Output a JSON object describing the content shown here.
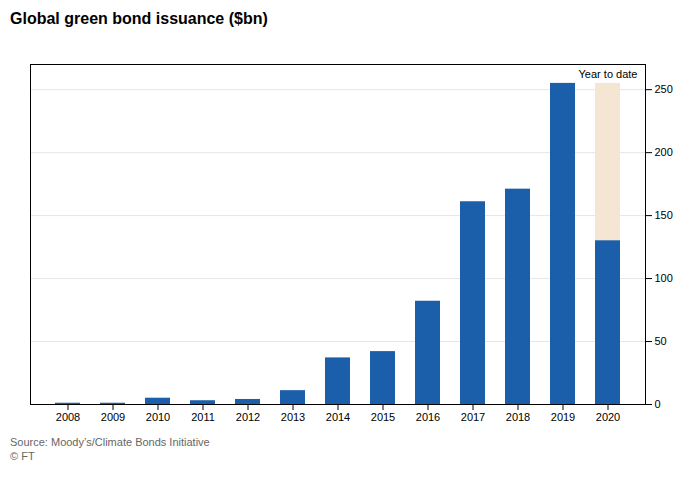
{
  "chart_data": {
    "type": "bar",
    "title": "Global green bond issuance ($bn)",
    "categories": [
      "2008",
      "2009",
      "2010",
      "2011",
      "2012",
      "2013",
      "2014",
      "2015",
      "2016",
      "2017",
      "2018",
      "2019",
      "2020"
    ],
    "values": [
      1,
      1,
      5,
      3,
      4,
      11,
      37,
      42,
      82,
      161,
      171,
      255,
      130
    ],
    "color": "#1b5faa",
    "ylim": [
      0,
      270
    ],
    "yticks": [
      0,
      50,
      100,
      150,
      200,
      250
    ],
    "grid": true,
    "highlight": {
      "category": "2020",
      "value": 255,
      "color": "#f5e6d3",
      "label": "Year to date"
    },
    "source": "Source: Moody’s/Climate Bonds Initiative",
    "credit": "© FT"
  }
}
